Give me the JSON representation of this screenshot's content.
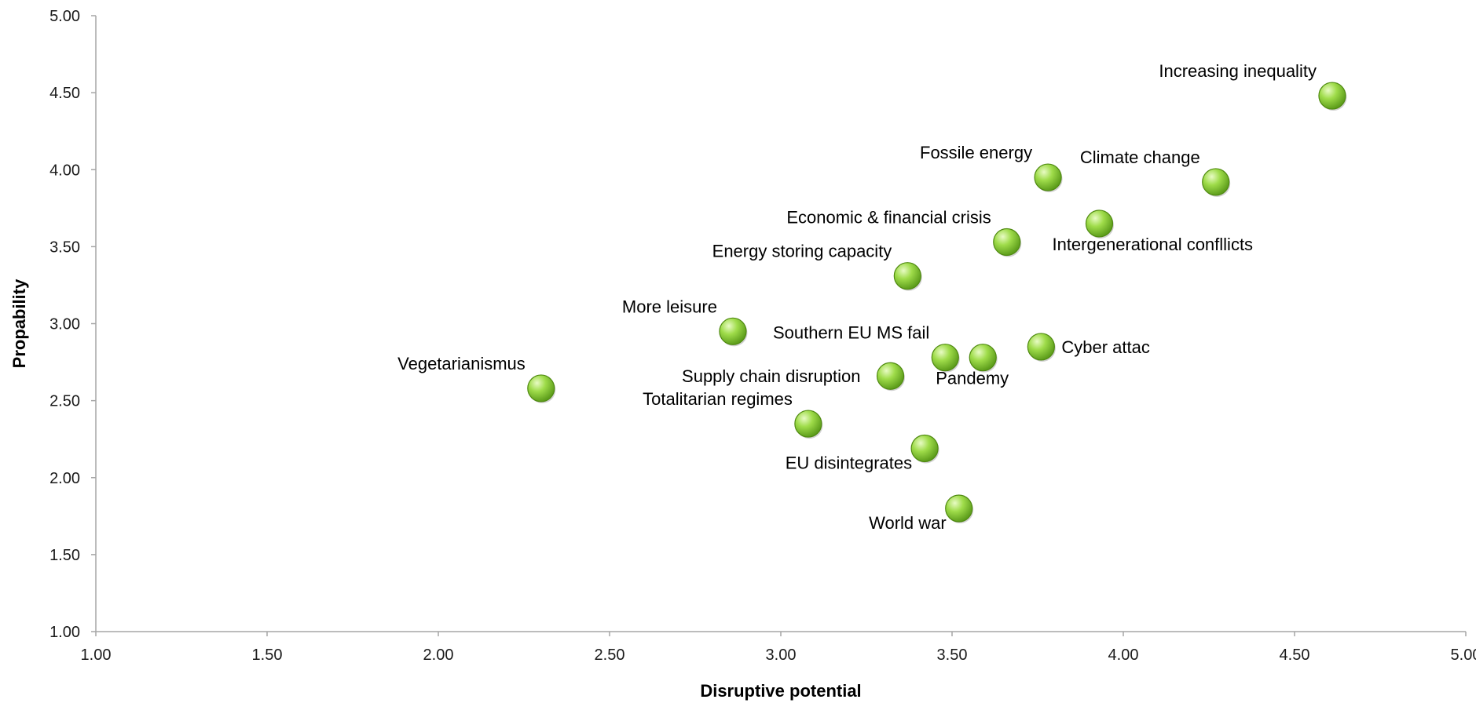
{
  "chart_data": {
    "type": "scatter",
    "title": "",
    "xlabel": "Disruptive potential",
    "ylabel": "Propability",
    "xlim": [
      1.0,
      5.0
    ],
    "ylim": [
      1.0,
      5.0
    ],
    "x_ticks": [
      "1.00",
      "1.50",
      "2.00",
      "2.50",
      "3.00",
      "3.50",
      "4.00",
      "4.50",
      "5.00"
    ],
    "y_ticks": [
      "1.00",
      "1.50",
      "2.00",
      "2.50",
      "3.00",
      "3.50",
      "4.00",
      "4.50",
      "5.00"
    ],
    "grid": false,
    "legend": "none",
    "marker_color": "#8ed13a",
    "points": [
      {
        "label": "Increasing inequality",
        "x": 4.61,
        "y": 4.48,
        "label_pos": "upper-left"
      },
      {
        "label": "Climate change",
        "x": 4.27,
        "y": 3.92,
        "label_pos": "upper-left"
      },
      {
        "label": "Fossile energy",
        "x": 3.78,
        "y": 3.95,
        "label_pos": "upper-left"
      },
      {
        "label": "Intergenerational confllicts",
        "x": 3.93,
        "y": 3.65,
        "label_pos": "lower-right"
      },
      {
        "label": "Economic & financial crisis",
        "x": 3.66,
        "y": 3.53,
        "label_pos": "upper-left"
      },
      {
        "label": "Energy storing capacity",
        "x": 3.37,
        "y": 3.31,
        "label_pos": "upper-left"
      },
      {
        "label": "More leisure",
        "x": 2.86,
        "y": 2.95,
        "label_pos": "upper-left"
      },
      {
        "label": "Southern EU MS fail",
        "x": 3.48,
        "y": 2.78,
        "label_pos": "upper-left"
      },
      {
        "label": "Pandemy",
        "x": 3.59,
        "y": 2.78,
        "label_pos": "lower-right"
      },
      {
        "label": "Cyber attac",
        "x": 3.76,
        "y": 2.85,
        "label_pos": "right"
      },
      {
        "label": "Supply chain disruption",
        "x": 3.32,
        "y": 2.66,
        "label_pos": "left"
      },
      {
        "label": "Vegetarianismus",
        "x": 2.3,
        "y": 2.58,
        "label_pos": "upper-left"
      },
      {
        "label": "Totalitarian regimes",
        "x": 3.08,
        "y": 2.35,
        "label_pos": "upper-left"
      },
      {
        "label": "EU disintegrates",
        "x": 3.42,
        "y": 2.19,
        "label_pos": "lower-left"
      },
      {
        "label": "World war",
        "x": 3.52,
        "y": 1.8,
        "label_pos": "lower-left"
      }
    ]
  }
}
